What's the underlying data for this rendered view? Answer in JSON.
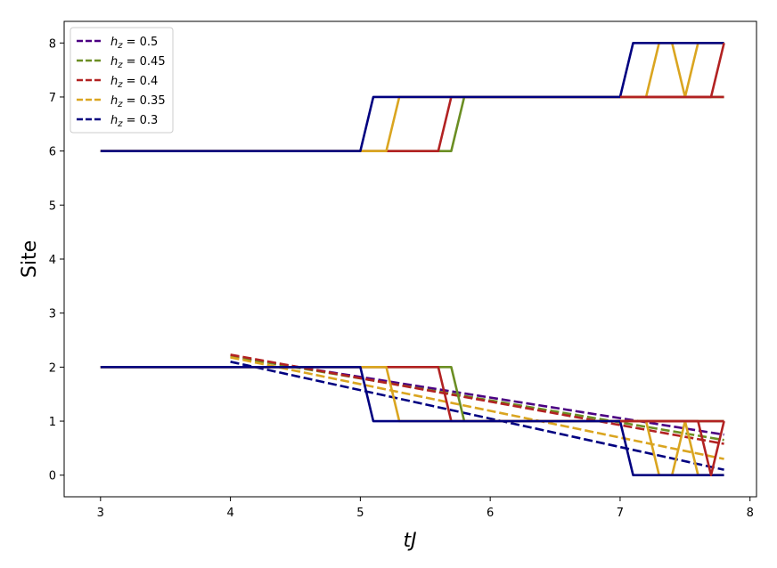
{
  "chart_data": {
    "type": "line",
    "xlabel": "tJ",
    "ylabel": "Site",
    "xlim": [
      2.72,
      8.05
    ],
    "ylim": [
      -0.4,
      8.4
    ],
    "x_ticks": [
      3,
      4,
      5,
      6,
      7,
      8
    ],
    "y_ticks": [
      0,
      1,
      2,
      3,
      4,
      5,
      6,
      7,
      8
    ],
    "legend_position": "top-left",
    "grid": false,
    "legend": [
      {
        "label": "h_z = 0.5",
        "main": "h",
        "sub": "z",
        "rest": " = 0.5",
        "color": "#4b0082"
      },
      {
        "label": "h_z = 0.45",
        "main": "h",
        "sub": "z",
        "rest": " = 0.45",
        "color": "#6b8e23"
      },
      {
        "label": "h_z = 0.4",
        "main": "h",
        "sub": "z",
        "rest": " = 0.4",
        "color": "#b22222"
      },
      {
        "label": "h_z = 0.35",
        "main": "h",
        "sub": "z",
        "rest": " = 0.35",
        "color": "#daa520"
      },
      {
        "label": "h_z = 0.3",
        "main": "h",
        "sub": "z",
        "rest": " = 0.3",
        "color": "#000080"
      }
    ],
    "series": [
      {
        "color": "#4b0082",
        "style": "dashed",
        "x": [
          4.0,
          7.8
        ],
        "y": [
          2.2,
          0.75
        ]
      },
      {
        "color": "#6b8e23",
        "style": "dashed",
        "x": [
          4.0,
          7.8
        ],
        "y": [
          2.2,
          0.65
        ]
      },
      {
        "color": "#b22222",
        "style": "dashed",
        "x": [
          4.0,
          7.8
        ],
        "y": [
          2.23,
          0.58
        ]
      },
      {
        "color": "#daa520",
        "style": "dashed",
        "x": [
          4.0,
          7.8
        ],
        "y": [
          2.18,
          0.3
        ]
      },
      {
        "color": "#000080",
        "style": "dashed",
        "x": [
          4.0,
          7.8
        ],
        "y": [
          2.1,
          0.1
        ]
      },
      {
        "color": "#6b8e23",
        "style": "solid",
        "x": [
          3.0,
          5.7,
          5.8,
          7.8
        ],
        "y": [
          6,
          6,
          7,
          7
        ]
      },
      {
        "color": "#b22222",
        "style": "solid",
        "x": [
          3.0,
          5.6,
          5.7,
          7.8
        ],
        "y": [
          6,
          6,
          7,
          7
        ]
      },
      {
        "color": "#daa520",
        "style": "solid",
        "x": [
          3.0,
          5.2,
          5.3,
          7.2,
          7.3,
          7.4,
          7.5,
          7.6,
          7.8
        ],
        "y": [
          6,
          6,
          7,
          7,
          8,
          8,
          7,
          8,
          8
        ]
      },
      {
        "color": "#000080",
        "style": "solid",
        "x": [
          3.0,
          5.0,
          5.1,
          7.0,
          7.1,
          7.8
        ],
        "y": [
          6,
          6,
          7,
          7,
          8,
          8
        ]
      },
      {
        "color": "#6b8e23",
        "style": "solid",
        "x": [
          3.0,
          5.7,
          5.8,
          7.8
        ],
        "y": [
          2,
          2,
          1,
          1
        ]
      },
      {
        "color": "#b22222",
        "style": "solid",
        "x": [
          3.0,
          5.6,
          5.7,
          7.8
        ],
        "y": [
          2,
          2,
          1,
          1
        ]
      },
      {
        "color": "#daa520",
        "style": "solid",
        "x": [
          3.0,
          5.2,
          5.3,
          7.2,
          7.3,
          7.4,
          7.5,
          7.6,
          7.8
        ],
        "y": [
          2,
          2,
          1,
          1,
          0,
          0,
          1,
          0,
          0
        ]
      },
      {
        "color": "#000080",
        "style": "solid",
        "x": [
          3.0,
          5.0,
          5.1,
          7.0,
          7.1,
          7.8
        ],
        "y": [
          2,
          2,
          1,
          1,
          0,
          0
        ]
      },
      {
        "color": "#b22222",
        "style": "solid",
        "x": [
          7.0,
          7.2,
          7.3,
          7.7,
          7.8
        ],
        "y": [
          7,
          7,
          7,
          7,
          8
        ]
      },
      {
        "color": "#b22222",
        "style": "solid",
        "x": [
          7.0,
          7.2,
          7.5,
          7.6,
          7.7,
          7.8
        ],
        "y": [
          1,
          1,
          1,
          1,
          0,
          1
        ]
      }
    ]
  }
}
